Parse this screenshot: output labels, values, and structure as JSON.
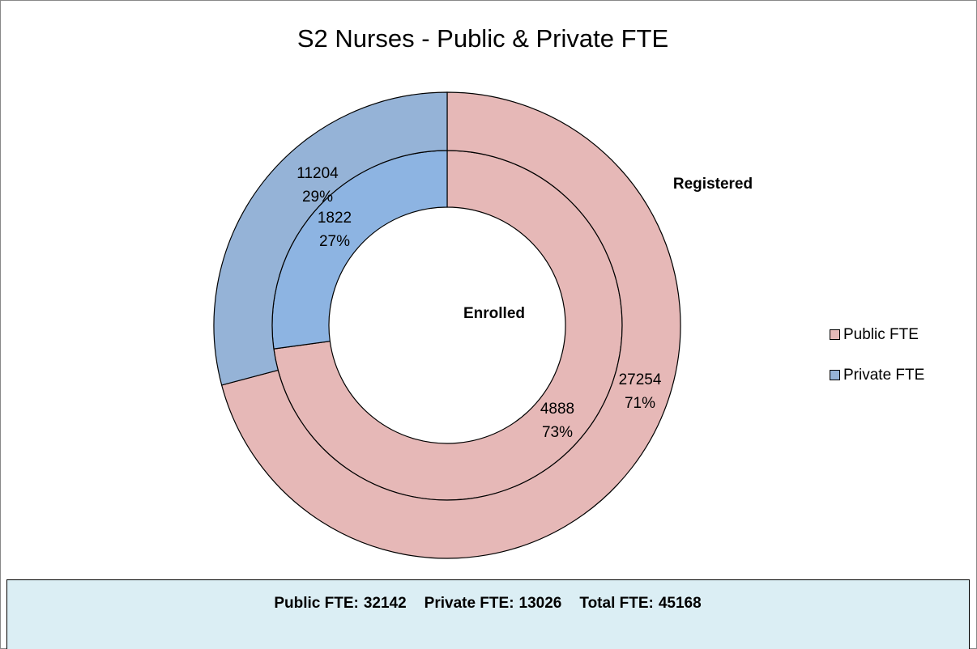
{
  "chart_data": {
    "type": "donut",
    "title": "S2 Nurses - Public & Private FTE",
    "series": [
      {
        "name": "Public FTE",
        "color": "#e6b8b7"
      },
      {
        "name": "Private FTE",
        "color": "#95b3d7"
      }
    ],
    "rings": [
      {
        "name": "Enrolled",
        "values": [
          4888,
          1822
        ],
        "percent_labels": [
          "73%",
          "27%"
        ],
        "colors": [
          "#e6b8b7",
          "#8db4e2"
        ]
      },
      {
        "name": "Registered",
        "values": [
          27254,
          11204
        ],
        "percent_labels": [
          "71%",
          "29%"
        ],
        "colors": [
          "#e6b8b7",
          "#95b3d7"
        ]
      }
    ],
    "legend": "right"
  },
  "footer": [
    {
      "label": "Public FTE:",
      "value": 32142
    },
    {
      "label": "Private FTE:",
      "value": 13026
    },
    {
      "label": "Total FTE:",
      "value": 45168
    }
  ]
}
